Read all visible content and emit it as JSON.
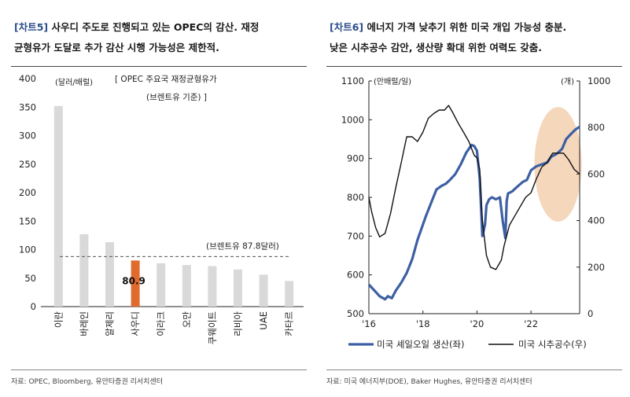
{
  "left": {
    "title_tag": "[차트5]",
    "title_line1": " 사우디 주도로 진행되고 있는 OPEC의 감산. 재정",
    "title_line2": "균형유가 도달로 추가 감산 시행 가능성은 제한적.",
    "source": "자료: OPEC, Bloomberg, 유안타증권 리서치센터",
    "chart_data": {
      "type": "bar",
      "title": "[ OPEC 주요국 재정균형유가",
      "subtitle": "(브렌트유 기준) ]",
      "ylabel": "(달러/배럴)",
      "ylim": [
        0,
        400
      ],
      "yticks": [
        0,
        50,
        100,
        150,
        200,
        250,
        300,
        350,
        400
      ],
      "categories": [
        "이란",
        "바레인",
        "알제리",
        "사우디",
        "이라크",
        "오만",
        "쿠웨이트",
        "리비아",
        "UAE",
        "카타르"
      ],
      "values": [
        352,
        127,
        113,
        80.9,
        76,
        73,
        71,
        65,
        56,
        45
      ],
      "highlight_index": 3,
      "highlight_label": "80.9",
      "reference_value": 87.8,
      "reference_label": "(브렌트유 87.8달러)",
      "colors": {
        "bar": "#d9d9d9",
        "highlight": "#e06b2c",
        "reference": "#555555"
      }
    }
  },
  "right": {
    "title_tag": "[차트6]",
    "title_line1": " 에너지 가격 낮추기 위한 미국 개입 가능성 충분.",
    "title_line2": "낮은 시추공수 감안, 생산량 확대 위한 여력도 갖춤.",
    "source": "자료: 미국 에너지부(DOE), Baker Hughes, 유안타증권 리서치센터",
    "chart_data": {
      "type": "line",
      "left_axis": {
        "label": "(만배럴/일)",
        "ylim": [
          500,
          1100
        ],
        "ticks": [
          500,
          600,
          700,
          800,
          900,
          1000,
          1100
        ]
      },
      "right_axis": {
        "label": "(개)",
        "ylim": [
          0,
          1000
        ],
        "ticks": [
          0,
          200,
          400,
          600,
          800,
          1000
        ]
      },
      "x_range": [
        2016,
        2023.8
      ],
      "x_ticks": [
        "'16",
        "'18",
        "'20",
        "'22"
      ],
      "x_tick_values": [
        2016,
        2018,
        2020,
        2022
      ],
      "series": [
        {
          "name": "미국 셰일오일 생산(좌)",
          "axis": "left",
          "color": "#3d5fa3",
          "x": [
            2016.0,
            2016.2,
            2016.4,
            2016.6,
            2016.7,
            2016.85,
            2017.0,
            2017.2,
            2017.4,
            2017.6,
            2017.8,
            2017.95,
            2018.1,
            2018.3,
            2018.5,
            2018.7,
            2018.85,
            2019.0,
            2019.2,
            2019.4,
            2019.6,
            2019.8,
            2019.9,
            2020.0,
            2020.1,
            2020.2,
            2020.3,
            2020.35,
            2020.45,
            2020.55,
            2020.7,
            2020.85,
            2020.95,
            2021.05,
            2021.1,
            2021.15,
            2021.3,
            2021.5,
            2021.7,
            2021.85,
            2022.0,
            2022.2,
            2022.4,
            2022.6,
            2022.75,
            2022.9,
            2023.0,
            2023.15,
            2023.3,
            2023.5,
            2023.65,
            2023.8
          ],
          "values": [
            575,
            560,
            545,
            537,
            545,
            540,
            560,
            580,
            605,
            640,
            690,
            720,
            750,
            785,
            820,
            830,
            835,
            845,
            860,
            885,
            915,
            935,
            932,
            920,
            850,
            700,
            730,
            780,
            795,
            800,
            795,
            800,
            740,
            695,
            790,
            810,
            815,
            828,
            840,
            845,
            870,
            880,
            885,
            890,
            905,
            910,
            915,
            925,
            950,
            965,
            975,
            982
          ]
        },
        {
          "name": "미국 시추공수(우)",
          "axis": "right",
          "color": "#111111",
          "x": [
            2016.0,
            2016.1,
            2016.25,
            2016.4,
            2016.6,
            2016.8,
            2017.0,
            2017.2,
            2017.4,
            2017.6,
            2017.8,
            2018.0,
            2018.2,
            2018.4,
            2018.6,
            2018.8,
            2018.95,
            2019.1,
            2019.3,
            2019.5,
            2019.7,
            2019.9,
            2020.0,
            2020.1,
            2020.2,
            2020.35,
            2020.5,
            2020.7,
            2020.9,
            2021.0,
            2021.2,
            2021.4,
            2021.6,
            2021.8,
            2022.0,
            2022.2,
            2022.4,
            2022.6,
            2022.8,
            2023.0,
            2023.2,
            2023.4,
            2023.6,
            2023.8
          ],
          "values": [
            500,
            440,
            370,
            330,
            345,
            430,
            545,
            650,
            760,
            760,
            740,
            780,
            840,
            860,
            875,
            875,
            895,
            865,
            820,
            780,
            740,
            680,
            670,
            620,
            400,
            250,
            200,
            190,
            230,
            290,
            380,
            420,
            460,
            500,
            520,
            580,
            630,
            650,
            690,
            690,
            690,
            660,
            620,
            600
          ]
        }
      ],
      "legend": [
        "미국 셰일오일 생산(좌)",
        "미국 시추공수(우)"
      ],
      "highlight_ellipse": {
        "x_center": 2023.0,
        "y_center_left": 885,
        "color": "#f1c9a6"
      }
    }
  }
}
